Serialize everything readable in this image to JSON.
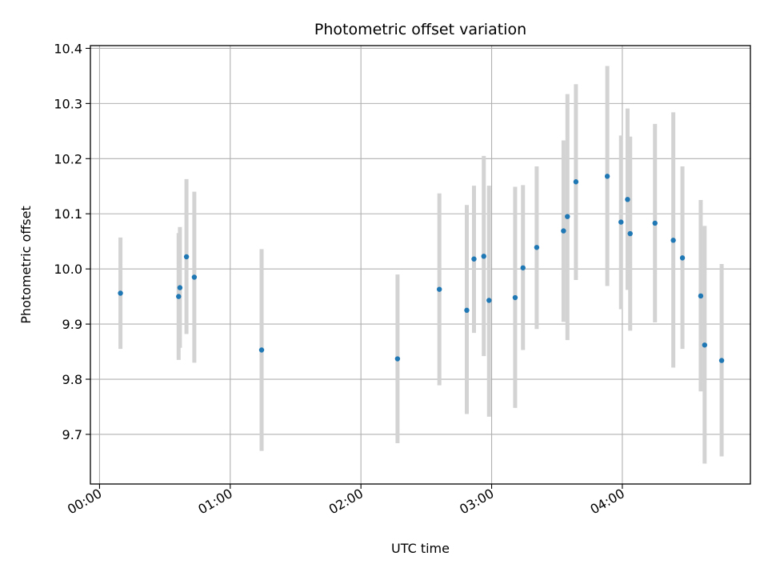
{
  "chart_data": {
    "type": "scatter",
    "title": "Photometric offset variation",
    "xlabel": "UTC time",
    "ylabel": "Photometric offset",
    "x_unit": "hours (UTC)",
    "xlim": [
      -0.07,
      4.98
    ],
    "ylim": [
      9.61,
      10.405
    ],
    "x_ticks": [
      {
        "value": 0,
        "label": "00:00"
      },
      {
        "value": 1,
        "label": "01:00"
      },
      {
        "value": 2,
        "label": "02:00"
      },
      {
        "value": 3,
        "label": "03:00"
      },
      {
        "value": 4,
        "label": "04:00"
      }
    ],
    "y_ticks": [
      {
        "value": 9.7,
        "label": "9.7"
      },
      {
        "value": 9.8,
        "label": "9.8"
      },
      {
        "value": 9.9,
        "label": "9.9"
      },
      {
        "value": 10.0,
        "label": "10.0"
      },
      {
        "value": 10.1,
        "label": "10.1"
      },
      {
        "value": 10.2,
        "label": "10.2"
      },
      {
        "value": 10.3,
        "label": "10.3"
      },
      {
        "value": 10.4,
        "label": "10.4"
      }
    ],
    "grid": true,
    "point_color": "#1f77b4",
    "errorbar_color": "#d3d3d3",
    "points": [
      {
        "x": 0.16,
        "y": 9.956,
        "ylow": 9.855,
        "yhigh": 10.057
      },
      {
        "x": 0.605,
        "y": 9.95,
        "ylow": 9.835,
        "yhigh": 10.065
      },
      {
        "x": 0.615,
        "y": 9.966,
        "ylow": 9.857,
        "yhigh": 10.076
      },
      {
        "x": 0.665,
        "y": 10.022,
        "ylow": 9.882,
        "yhigh": 10.163
      },
      {
        "x": 0.725,
        "y": 9.985,
        "ylow": 9.83,
        "yhigh": 10.14
      },
      {
        "x": 1.24,
        "y": 9.853,
        "ylow": 9.67,
        "yhigh": 10.036
      },
      {
        "x": 2.28,
        "y": 9.837,
        "ylow": 9.684,
        "yhigh": 9.99
      },
      {
        "x": 2.6,
        "y": 9.963,
        "ylow": 9.789,
        "yhigh": 10.137
      },
      {
        "x": 2.81,
        "y": 9.925,
        "ylow": 9.737,
        "yhigh": 10.116
      },
      {
        "x": 2.865,
        "y": 10.018,
        "ylow": 9.884,
        "yhigh": 10.151
      },
      {
        "x": 2.94,
        "y": 10.023,
        "ylow": 9.842,
        "yhigh": 10.205
      },
      {
        "x": 2.98,
        "y": 9.943,
        "ylow": 9.732,
        "yhigh": 10.151
      },
      {
        "x": 3.18,
        "y": 9.948,
        "ylow": 9.748,
        "yhigh": 10.149
      },
      {
        "x": 3.24,
        "y": 10.002,
        "ylow": 9.853,
        "yhigh": 10.152
      },
      {
        "x": 3.345,
        "y": 10.039,
        "ylow": 9.891,
        "yhigh": 10.186
      },
      {
        "x": 3.55,
        "y": 10.069,
        "ylow": 9.904,
        "yhigh": 10.233
      },
      {
        "x": 3.58,
        "y": 10.095,
        "ylow": 9.871,
        "yhigh": 10.317
      },
      {
        "x": 3.645,
        "y": 10.158,
        "ylow": 9.98,
        "yhigh": 10.335
      },
      {
        "x": 3.885,
        "y": 10.168,
        "ylow": 9.969,
        "yhigh": 10.368
      },
      {
        "x": 3.99,
        "y": 10.085,
        "ylow": 9.927,
        "yhigh": 10.242
      },
      {
        "x": 4.04,
        "y": 10.126,
        "ylow": 9.962,
        "yhigh": 10.291
      },
      {
        "x": 4.06,
        "y": 10.064,
        "ylow": 9.888,
        "yhigh": 10.24
      },
      {
        "x": 4.25,
        "y": 10.083,
        "ylow": 9.903,
        "yhigh": 10.263
      },
      {
        "x": 4.39,
        "y": 10.052,
        "ylow": 9.821,
        "yhigh": 10.284
      },
      {
        "x": 4.46,
        "y": 10.02,
        "ylow": 9.855,
        "yhigh": 10.186
      },
      {
        "x": 4.6,
        "y": 9.951,
        "ylow": 9.778,
        "yhigh": 10.125
      },
      {
        "x": 4.63,
        "y": 9.862,
        "ylow": 9.647,
        "yhigh": 10.078
      },
      {
        "x": 4.76,
        "y": 9.834,
        "ylow": 9.66,
        "yhigh": 10.009
      }
    ]
  }
}
